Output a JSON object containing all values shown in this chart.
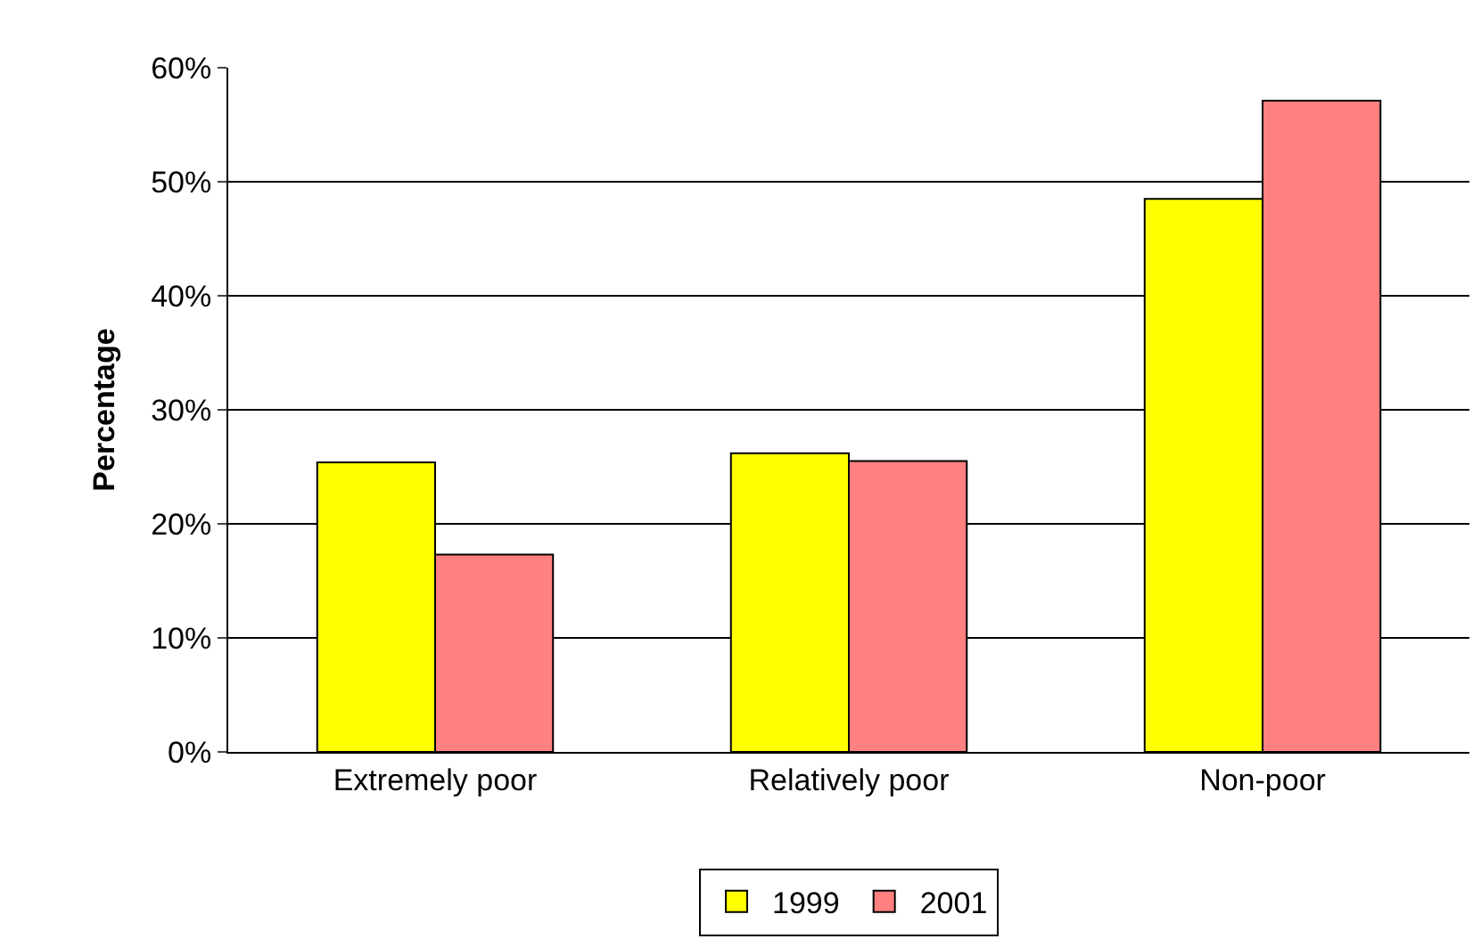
{
  "chart_data": {
    "type": "bar",
    "ylabel": "Percentage",
    "categories": [
      "Extremely poor",
      "Relatively poor",
      "Non-poor"
    ],
    "series": [
      {
        "name": "1999",
        "color": "#ffff00",
        "values": [
          25.4,
          26.2,
          48.5
        ]
      },
      {
        "name": "2001",
        "color": "#ff8080",
        "values": [
          17.3,
          25.5,
          57.1
        ]
      }
    ],
    "ylim": [
      0,
      60
    ],
    "yticks": [
      {
        "value": 0,
        "label": "0%"
      },
      {
        "value": 10,
        "label": "10%"
      },
      {
        "value": 20,
        "label": "20%"
      },
      {
        "value": 30,
        "label": "30%"
      },
      {
        "value": 40,
        "label": "40%"
      },
      {
        "value": 50,
        "label": "50%"
      },
      {
        "value": 60,
        "label": "60%"
      }
    ],
    "grid": "y",
    "legend": "bottom"
  }
}
